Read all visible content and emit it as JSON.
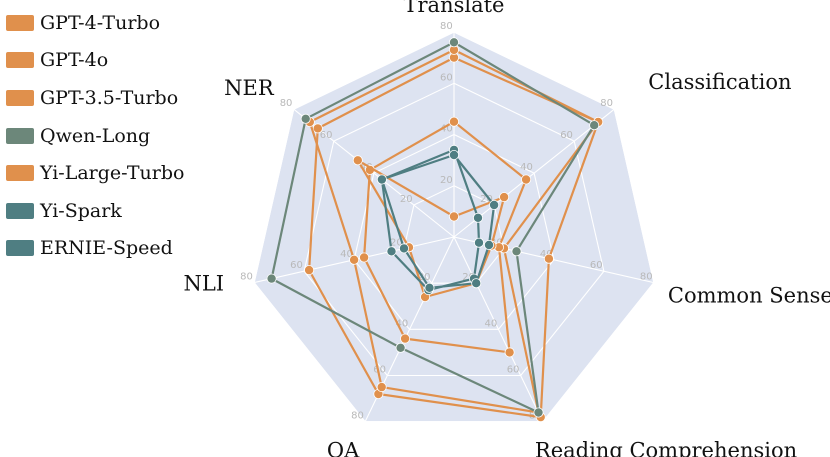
{
  "chart_data": {
    "type": "radar",
    "axes": [
      "Translate",
      "Classification",
      "Common Sense",
      "Reading Comprehension",
      "QA",
      "NLI",
      "NER"
    ],
    "ticks": [
      "20",
      "40",
      "60",
      "80"
    ],
    "range": [
      0,
      80
    ],
    "series": [
      {
        "name": "GPT-4-Turbo",
        "color": "#e0904c",
        "values": [
          70,
          72,
          38,
          78,
          68,
          58,
          68
        ]
      },
      {
        "name": "GPT-4o",
        "color": "#e0904c",
        "values": [
          73,
          72,
          20,
          76,
          65,
          40,
          72
        ]
      },
      {
        "name": "GPT-3.5-Turbo",
        "color": "#e0904c",
        "values": [
          45,
          36,
          18,
          50,
          44,
          36,
          42
        ]
      },
      {
        "name": "Qwen-Long",
        "color": "#6c877a",
        "values": [
          76,
          70,
          25,
          76,
          48,
          73,
          74
        ]
      },
      {
        "name": "Yi-Large-Turbo",
        "color": "#e0904c",
        "values": [
          8,
          25,
          15,
          20,
          26,
          18,
          48
        ]
      },
      {
        "name": "Yi-Spark",
        "color": "#4f7e82",
        "values": [
          34,
          12,
          10,
          18,
          23,
          25,
          36
        ]
      },
      {
        "name": "ERNIE-Speed",
        "color": "#4f7e82",
        "values": [
          32,
          20,
          14,
          20,
          22,
          20,
          36
        ]
      }
    ],
    "legend_position": "top-left",
    "background_color": "#dde3f1",
    "grid": true
  }
}
